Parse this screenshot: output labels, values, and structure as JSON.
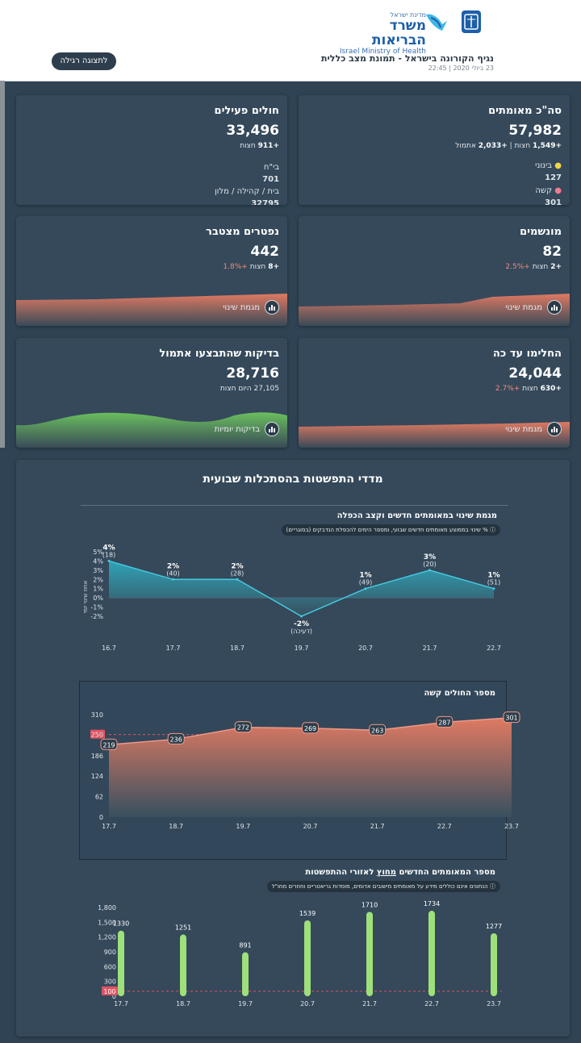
{
  "header": {
    "logo_top": "מדינת ישראל",
    "logo_main": "משרד הבריאות",
    "logo_en": "Israel Ministry of Health",
    "title": "נגיף הקורונה בישראל - תמונת מצב כללית",
    "date": "23 ביולי 2020 | 22:45",
    "regular_view_button": "לתצוגה רגילה"
  },
  "cards": {
    "total_confirmed": {
      "title": "סה\"כ מאומתים",
      "value": "57,982",
      "sub_prefix": "+1,549",
      "sub_mid": "חצות | ",
      "sub_yesterday": "+2,033",
      "sub_suffix": "אתמול",
      "moderate_label": "בינוני",
      "moderate_value": "127",
      "severe_label": "קשה",
      "severe_value": "301",
      "colors": {
        "moderate": "#f5d44a",
        "severe": "#f07c8c"
      }
    },
    "active": {
      "title": "חולים פעילים",
      "value": "33,496",
      "sub_value": "+911",
      "sub_label": "חצות",
      "hospital_label": "בי\"ח",
      "hospital_value": "701",
      "home_label": "בית / קהילה / מלון",
      "home_value": "32795"
    },
    "ventilated": {
      "title": "מונשמים",
      "value": "82",
      "sub_value": "+2",
      "sub_label": "חצות",
      "sub_percent": "+2.5%",
      "button": "מגמת שינוי"
    },
    "deceased": {
      "title": "נפטרים מצטבר",
      "value": "442",
      "sub_value": "+8",
      "sub_label": "חצות",
      "sub_percent": "+1.8%",
      "button": "מגמת שינוי"
    },
    "recovered": {
      "title": "החלימו עד כה",
      "value": "24,044",
      "sub_value": "+630",
      "sub_label": "חצות",
      "sub_percent": "+2.7%",
      "button": "מגמת שינוי"
    },
    "tests": {
      "title": "בדיקות שהתבצעו אתמול",
      "value": "28,716",
      "sub_text": "27,105 היום חצות",
      "button": "בדיקות יומיות"
    }
  },
  "panel": {
    "title": "מדדי התפשטות בהסתכלות שבועית"
  },
  "chart_data": [
    {
      "type": "area",
      "title": "מגמת שינוי במאומתים חדשים וקצב הכפלה",
      "info": "% שינוי בממוצע מאומתים חדשים שבועי, ומספר הימים להכפלת הנדבקים (בסוגריים)",
      "ylabel": "אחוז שינוי יומי",
      "categories": [
        "16.7",
        "17.7",
        "18.7",
        "19.7",
        "20.7",
        "21.7",
        "22.7"
      ],
      "values": [
        4,
        2,
        2,
        -2,
        1,
        3,
        1
      ],
      "point_labels": [
        "4%",
        "2%",
        "2%",
        "-2%",
        "1%",
        "3%",
        "1%"
      ],
      "doubling": [
        "(18)",
        "(40)",
        "(28)",
        "(דעיכה)",
        "(49)",
        "(20)",
        "(51)"
      ],
      "yticks": [
        "5%",
        "4%",
        "3%",
        "2%",
        "1%",
        "0%",
        "-1%",
        "-2%"
      ],
      "ylim": [
        -2,
        5
      ]
    },
    {
      "type": "area",
      "title": "מספר החולים קשה",
      "categories": [
        "17.7",
        "18.7",
        "19.7",
        "20.7",
        "21.7",
        "22.7",
        "23.7"
      ],
      "values": [
        219,
        236,
        272,
        269,
        263,
        287,
        301
      ],
      "yticks": [
        "310",
        "250",
        "186",
        "124",
        "62",
        "0"
      ],
      "ylim": [
        0,
        310
      ],
      "threshold": 250,
      "threshold_label": "250"
    },
    {
      "type": "bar",
      "title_prefix": "מספר המאומתים החדשים ",
      "title_underline": "מחוץ",
      "title_suffix": " לאזורי ההתפשטות",
      "info": "הנתונים אינם כוללים מידע על מאומתים מישובים אדומים, מוסדות גריאטריים וחוזרים מחו\"ל",
      "categories": [
        "17.7",
        "18.7",
        "19.7",
        "20.7",
        "21.7",
        "22.7",
        "23.7"
      ],
      "values": [
        1330,
        1251,
        891,
        1539,
        1710,
        1734,
        1277
      ],
      "value_labels": [
        "1330",
        "1251",
        "891",
        "1539",
        "1710",
        "1734",
        "1277"
      ],
      "yticks": [
        "1,800",
        "1,500",
        "1,200",
        "900",
        "600",
        "300",
        "0"
      ],
      "ylim": [
        0,
        1800
      ],
      "threshold": 100,
      "threshold_label": "100"
    }
  ]
}
